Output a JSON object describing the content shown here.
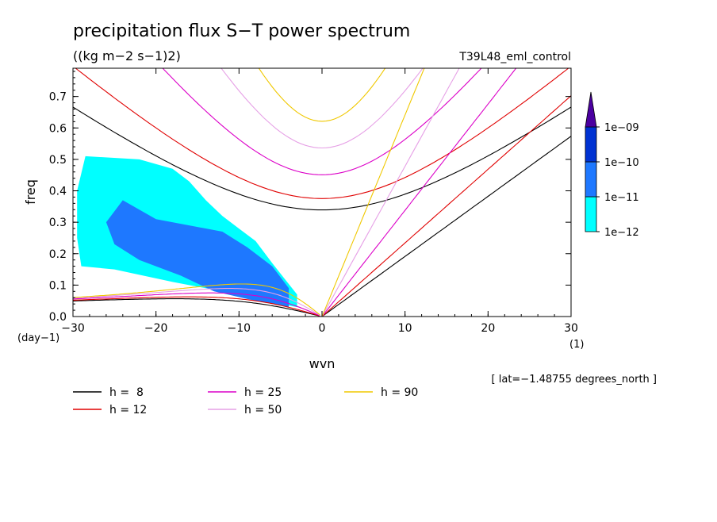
{
  "chart_data": {
    "type": "heatmap",
    "title": "precipitation flux S−T power spectrum",
    "subtitle": "((kg m−2 s−1)2)",
    "run_label": "T39L48_eml_control",
    "xlabel": "wvn",
    "ylabel": "freq",
    "x_unit": "(1)",
    "y_unit": "(day−1)",
    "xlim": [
      -30,
      30
    ],
    "ylim": [
      0,
      0.79
    ],
    "xticks": [
      -30,
      -20,
      -10,
      0,
      10,
      20,
      30
    ],
    "xtick_labels": [
      "−30",
      "−20",
      "−10",
      "0",
      "10",
      "20",
      "30"
    ],
    "yticks": [
      0.0,
      0.1,
      0.2,
      0.3,
      0.4,
      0.5,
      0.6,
      0.7
    ],
    "ytick_labels": [
      "0.0",
      "0.1",
      "0.2",
      "0.3",
      "0.4",
      "0.5",
      "0.6",
      "0.7"
    ],
    "footnote": "[ lat=−1.48755 degrees_north ]",
    "colorbar": {
      "levels": [
        "1e−12",
        "1e−11",
        "1e−10",
        "1e−09"
      ],
      "colors": [
        "#00ffff",
        "#1e78ff",
        "#0032d2",
        "#4b00a0"
      ]
    },
    "shaded_regions": [
      {
        "level": "1e−12",
        "color": "#00ffff",
        "polygon": [
          [
            -28.5,
            0.51
          ],
          [
            -22,
            0.5
          ],
          [
            -18,
            0.47
          ],
          [
            -16,
            0.43
          ],
          [
            -14,
            0.37
          ],
          [
            -12,
            0.32
          ],
          [
            -10,
            0.28
          ],
          [
            -8,
            0.24
          ],
          [
            -6,
            0.17
          ],
          [
            -4.5,
            0.12
          ],
          [
            -3,
            0.07
          ],
          [
            -3,
            0.03
          ],
          [
            -7,
            0.05
          ],
          [
            -12,
            0.08
          ],
          [
            -18,
            0.11
          ],
          [
            -25,
            0.15
          ],
          [
            -29,
            0.16
          ],
          [
            -29.5,
            0.25
          ],
          [
            -29.5,
            0.4
          ]
        ]
      },
      {
        "level": "1e−11",
        "color": "#1e78ff",
        "polygon": [
          [
            -24,
            0.37
          ],
          [
            -20,
            0.31
          ],
          [
            -16,
            0.29
          ],
          [
            -12,
            0.27
          ],
          [
            -9,
            0.22
          ],
          [
            -6,
            0.16
          ],
          [
            -4,
            0.09
          ],
          [
            -4,
            0.03
          ],
          [
            -8,
            0.05
          ],
          [
            -13,
            0.08
          ],
          [
            -17,
            0.13
          ],
          [
            -22,
            0.18
          ],
          [
            -25,
            0.23
          ],
          [
            -26,
            0.3
          ]
        ]
      }
    ],
    "series": [
      {
        "name": "h =  8",
        "color": "#000000",
        "h": 8
      },
      {
        "name": "h = 12",
        "color": "#e00000",
        "h": 12
      },
      {
        "name": "h = 25",
        "color": "#dc00c8",
        "h": 25
      },
      {
        "name": "h = 50",
        "color": "#e6a0e6",
        "h": 50
      },
      {
        "name": "h = 90",
        "color": "#f0c800",
        "h": 90
      }
    ],
    "legend_position": "bottom"
  }
}
